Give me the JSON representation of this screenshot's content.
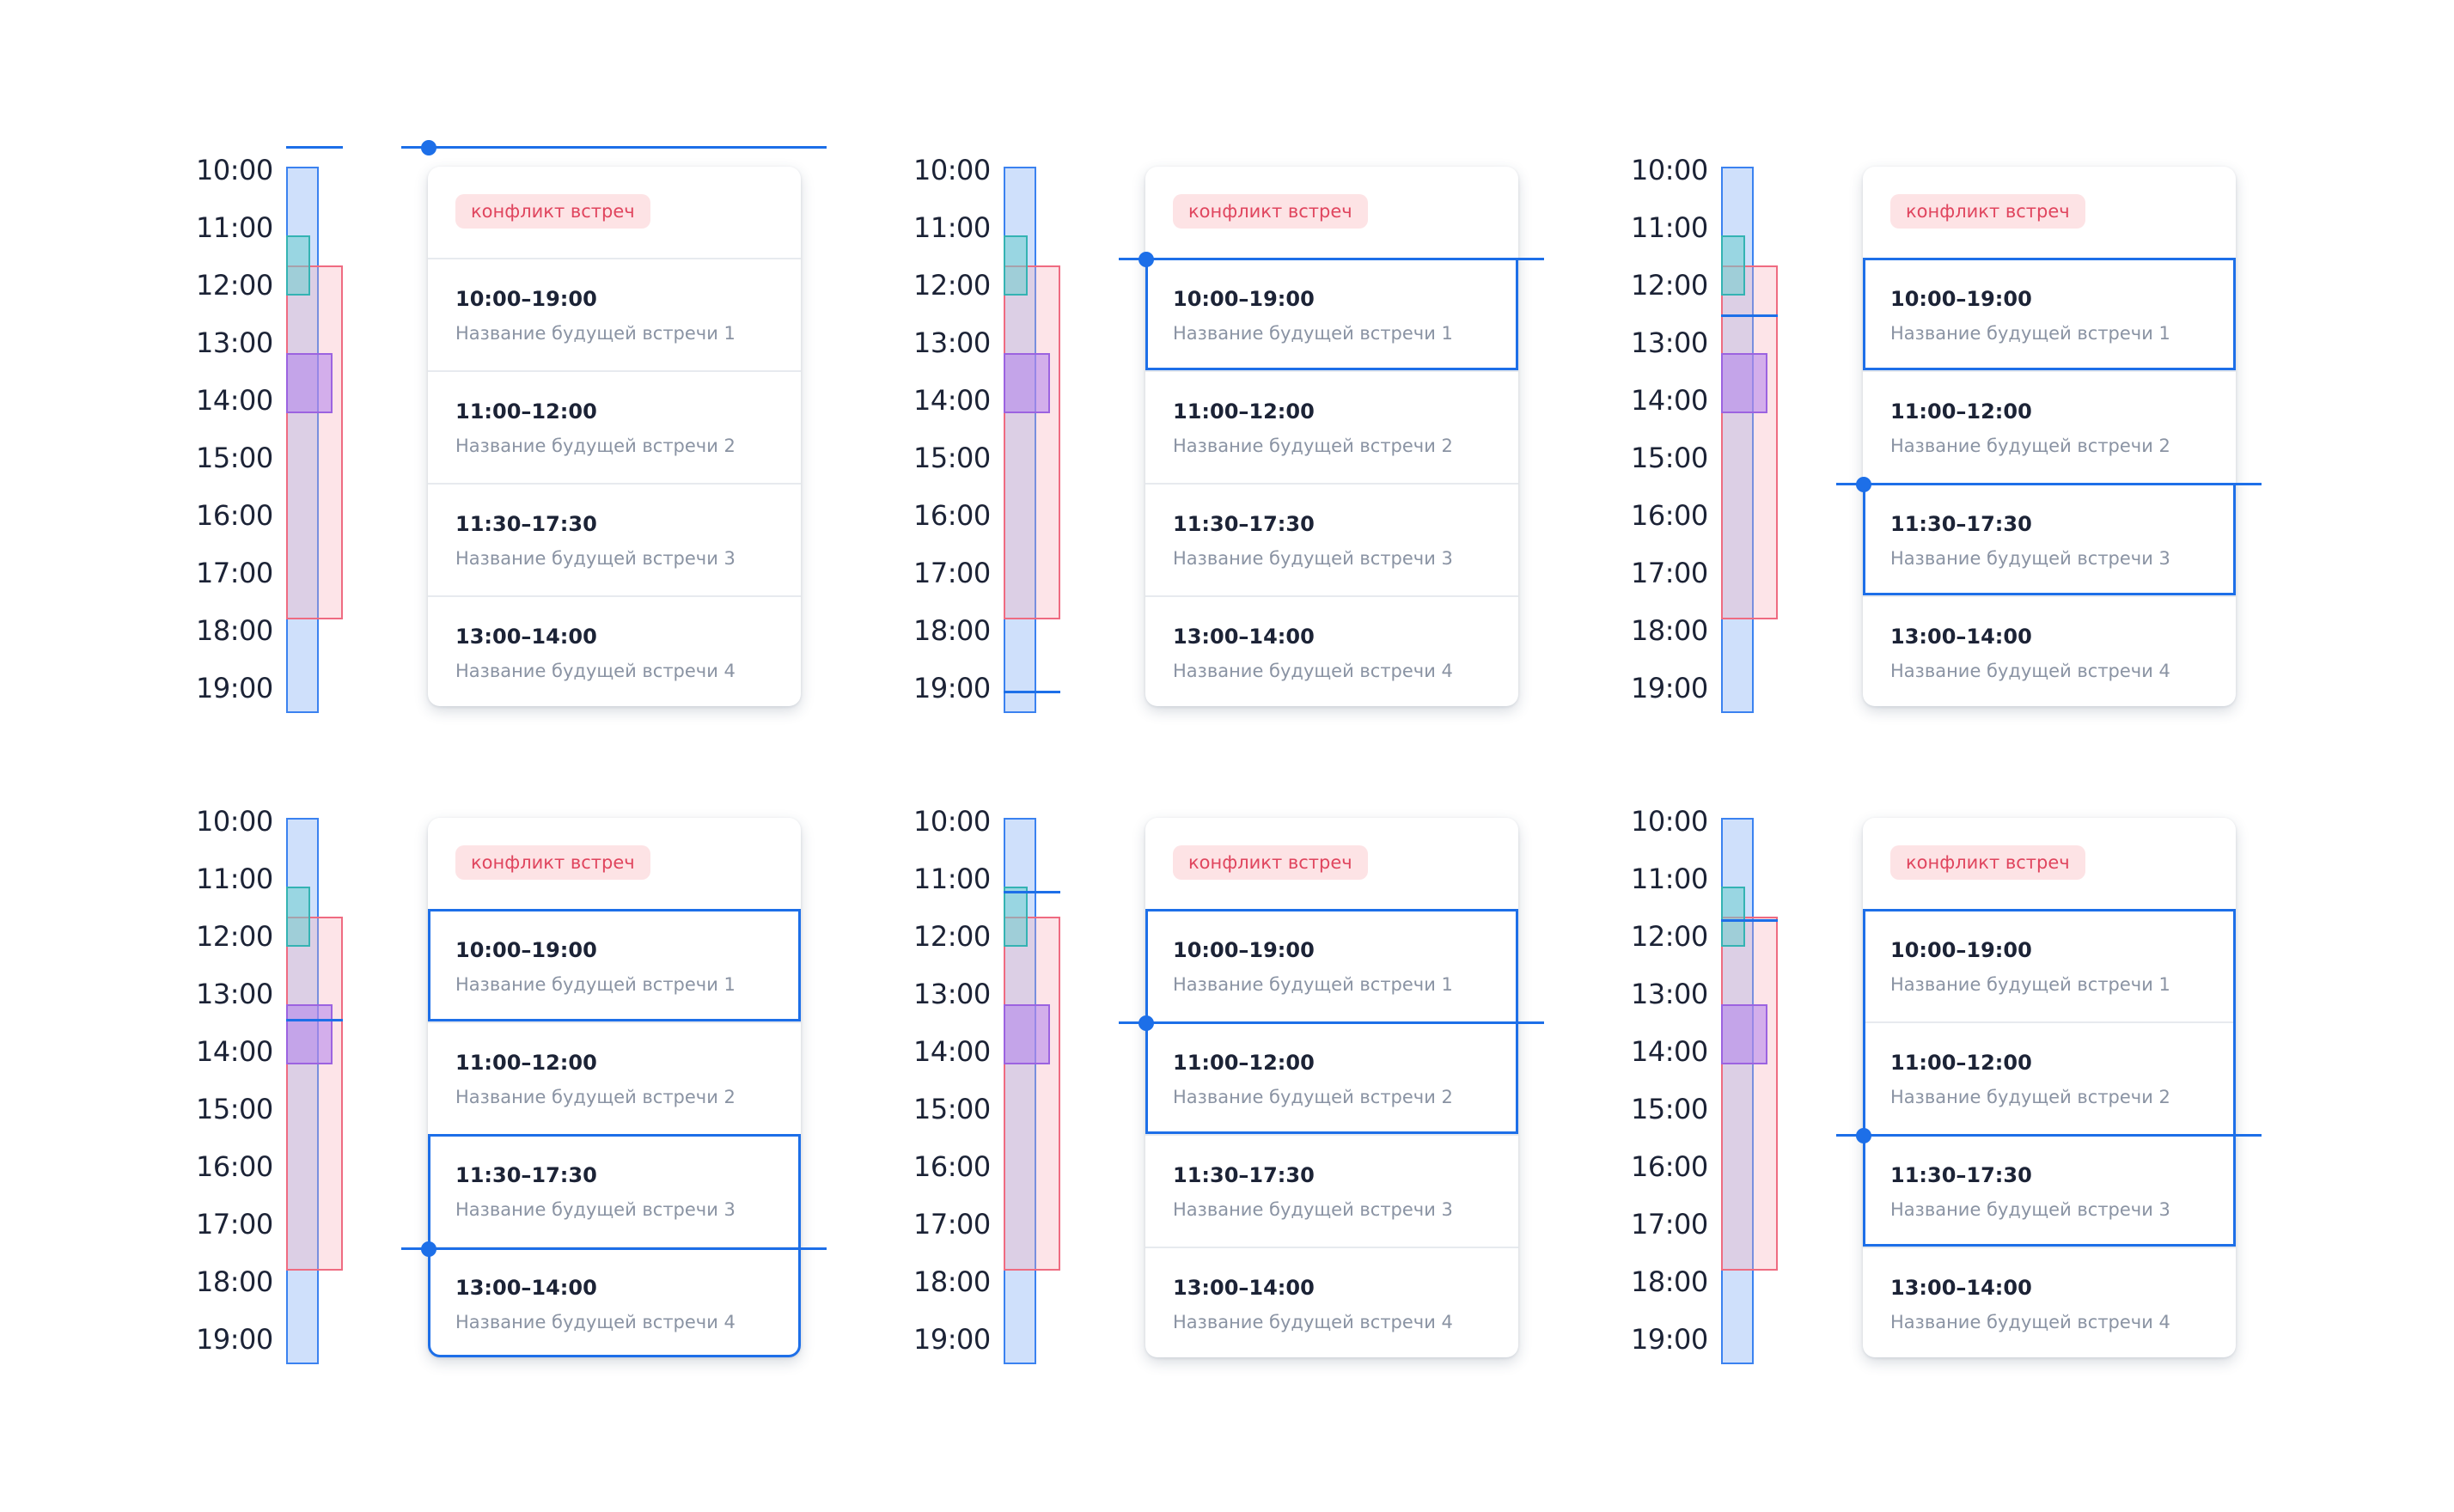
{
  "times": [
    "10:00",
    "11:00",
    "12:00",
    "13:00",
    "14:00",
    "15:00",
    "16:00",
    "17:00",
    "18:00",
    "19:00"
  ],
  "badge": "конфликт встреч",
  "meetings": [
    {
      "time": "10:00–19:00",
      "name": "Название будущей встречи 1"
    },
    {
      "time": "11:00–12:00",
      "name": "Название будущей встречи 2"
    },
    {
      "time": "11:30–17:30",
      "name": "Название будущей встречи 3"
    },
    {
      "time": "13:00–14:00",
      "name": "Название будущей встречи 4"
    }
  ],
  "colors": {
    "accent": "#1d6fe8",
    "conflict_text": "#e0455e",
    "conflict_bg": "#fde3e5",
    "bar_fill": "#cfe0fb",
    "conflict_range": "#ef6b81",
    "meeting2_range": "#34b3b3",
    "meeting4_range": "#9c63e0"
  },
  "panels": [
    {
      "selected": []
    },
    {
      "selected": [
        1
      ]
    },
    {
      "selected": [
        1,
        3
      ]
    },
    {
      "selected": [
        1,
        3,
        4
      ]
    },
    {
      "selected": [
        1,
        2
      ]
    },
    {
      "selected": [
        1,
        2,
        3
      ]
    }
  ]
}
